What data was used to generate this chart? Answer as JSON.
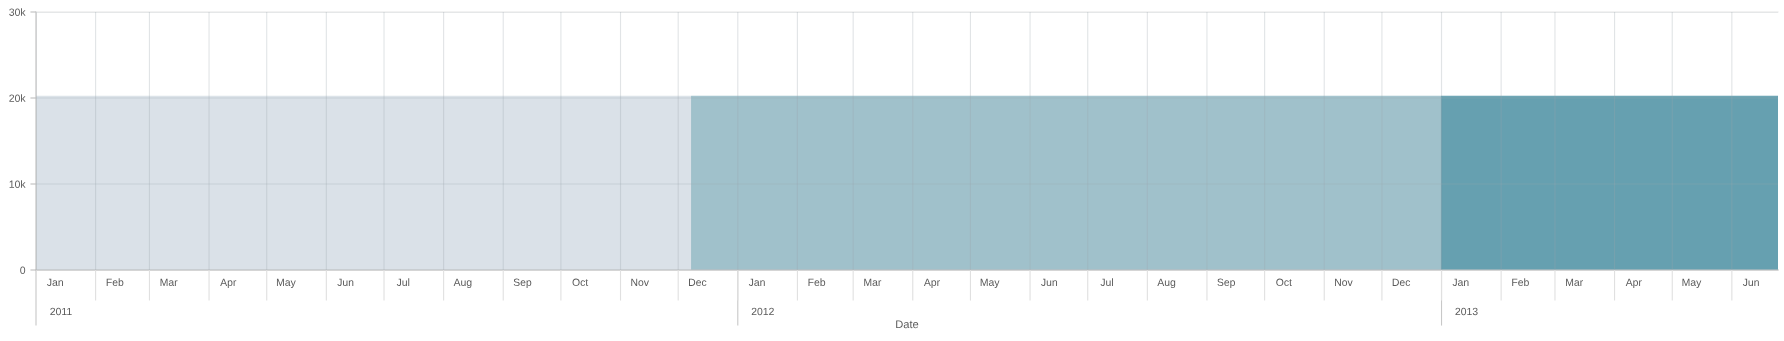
{
  "chart_data": {
    "type": "area",
    "xlabel": "Date",
    "series": [
      {
        "color": "#dae1e8",
        "x": [
          "2011-01-01",
          "2011-12-08"
        ],
        "values": [
          20200,
          20200
        ]
      },
      {
        "color": "#a0c1cb",
        "x": [
          "2011-12-08",
          "2013-01-01"
        ],
        "values": [
          20200,
          20200
        ]
      },
      {
        "color": "#66a0b0",
        "x": [
          "2013-01-01",
          "2013-06-25"
        ],
        "values": [
          20200,
          20200
        ]
      }
    ],
    "xlim": [
      "2011-01-01",
      "2013-06-25"
    ],
    "xticks": [
      {
        "value": "2011-01-01",
        "label": null
      },
      {
        "value": "2011-02-01",
        "label": null
      },
      {
        "value": "2011-03-01",
        "label": null
      },
      {
        "value": "2011-04-01",
        "label": null
      },
      {
        "value": "2011-05-01",
        "label": null
      },
      {
        "value": "2011-06-01",
        "label": null
      },
      {
        "value": "2011-07-01",
        "label": null
      },
      {
        "value": "2011-08-01",
        "label": null
      },
      {
        "value": "2011-09-01",
        "label": null
      },
      {
        "value": "2011-10-01",
        "label": null
      },
      {
        "value": "2011-11-01",
        "label": null
      },
      {
        "value": "2011-12-01",
        "label": null
      },
      {
        "value": "2012-01-01",
        "label": null
      },
      {
        "value": "2012-02-01",
        "label": null
      },
      {
        "value": "2012-03-01",
        "label": null
      },
      {
        "value": "2012-04-01",
        "label": null
      },
      {
        "value": "2012-05-01",
        "label": null
      },
      {
        "value": "2012-06-01",
        "label": null
      },
      {
        "value": "2012-07-01",
        "label": null
      },
      {
        "value": "2012-08-01",
        "label": null
      },
      {
        "value": "2012-09-01",
        "label": null
      },
      {
        "value": "2012-10-01",
        "label": null
      },
      {
        "value": "2012-11-01",
        "label": null
      },
      {
        "value": "2012-12-01",
        "label": null
      },
      {
        "value": "2013-01-01",
        "label": null
      },
      {
        "value": "2013-02-01",
        "label": null
      },
      {
        "value": "2013-03-01",
        "label": null
      },
      {
        "value": "2013-04-01",
        "label": null
      },
      {
        "value": "2013-05-01",
        "label": null
      },
      {
        "value": "2013-06-01",
        "label": null
      },
      {
        "value": "2011-01-11",
        "label": "Jan"
      },
      {
        "value": "2011-02-11",
        "label": "Feb"
      },
      {
        "value": "2011-03-11",
        "label": "Mar"
      },
      {
        "value": "2011-04-11",
        "label": "Apr"
      },
      {
        "value": "2011-05-11",
        "label": "May"
      },
      {
        "value": "2011-06-11",
        "label": "Jun"
      },
      {
        "value": "2011-07-11",
        "label": "Jul"
      },
      {
        "value": "2011-08-11",
        "label": "Aug"
      },
      {
        "value": "2011-09-11",
        "label": "Sep"
      },
      {
        "value": "2011-10-11",
        "label": "Oct"
      },
      {
        "value": "2011-11-11",
        "label": "Nov"
      },
      {
        "value": "2011-12-11",
        "label": "Dec"
      },
      {
        "value": "2012-01-11",
        "label": "Jan"
      },
      {
        "value": "2012-02-11",
        "label": "Feb"
      },
      {
        "value": "2012-03-11",
        "label": "Mar"
      },
      {
        "value": "2012-04-11",
        "label": "Apr"
      },
      {
        "value": "2012-05-11",
        "label": "May"
      },
      {
        "value": "2012-06-11",
        "label": "Jun"
      },
      {
        "value": "2012-07-11",
        "label": "Jul"
      },
      {
        "value": "2012-08-11",
        "label": "Aug"
      },
      {
        "value": "2012-09-11",
        "label": "Sep"
      },
      {
        "value": "2012-10-11",
        "label": "Oct"
      },
      {
        "value": "2012-11-11",
        "label": "Nov"
      },
      {
        "value": "2012-12-11",
        "label": "Dec"
      },
      {
        "value": "2013-01-11",
        "label": "Jan"
      },
      {
        "value": "2013-02-11",
        "label": "Feb"
      },
      {
        "value": "2013-03-11",
        "label": "Mar"
      },
      {
        "value": "2013-04-11",
        "label": "Apr"
      },
      {
        "value": "2013-05-11",
        "label": "May"
      },
      {
        "value": "2013-06-11",
        "label": "Jun"
      }
    ],
    "x2lim": [
      "2011-01-01",
      "2013-06-25"
    ],
    "x2ticks": [
      {
        "value": "2011-01-01",
        "label": null
      },
      {
        "value": "2012-01-01",
        "label": null
      },
      {
        "value": "2013-01-01",
        "label": null
      },
      {
        "value": "2011-01-14",
        "label": "2011"
      },
      {
        "value": "2012-01-14",
        "label": "2012"
      },
      {
        "value": "2013-01-14",
        "label": "2013"
      }
    ],
    "ylim": [
      0,
      30000
    ],
    "yticks": [
      0,
      {
        "value": 10000,
        "label": "10k"
      },
      {
        "value": 20000,
        "label": "20k"
      },
      {
        "value": 30000,
        "label": "30k"
      }
    ],
    "grid": true
  }
}
